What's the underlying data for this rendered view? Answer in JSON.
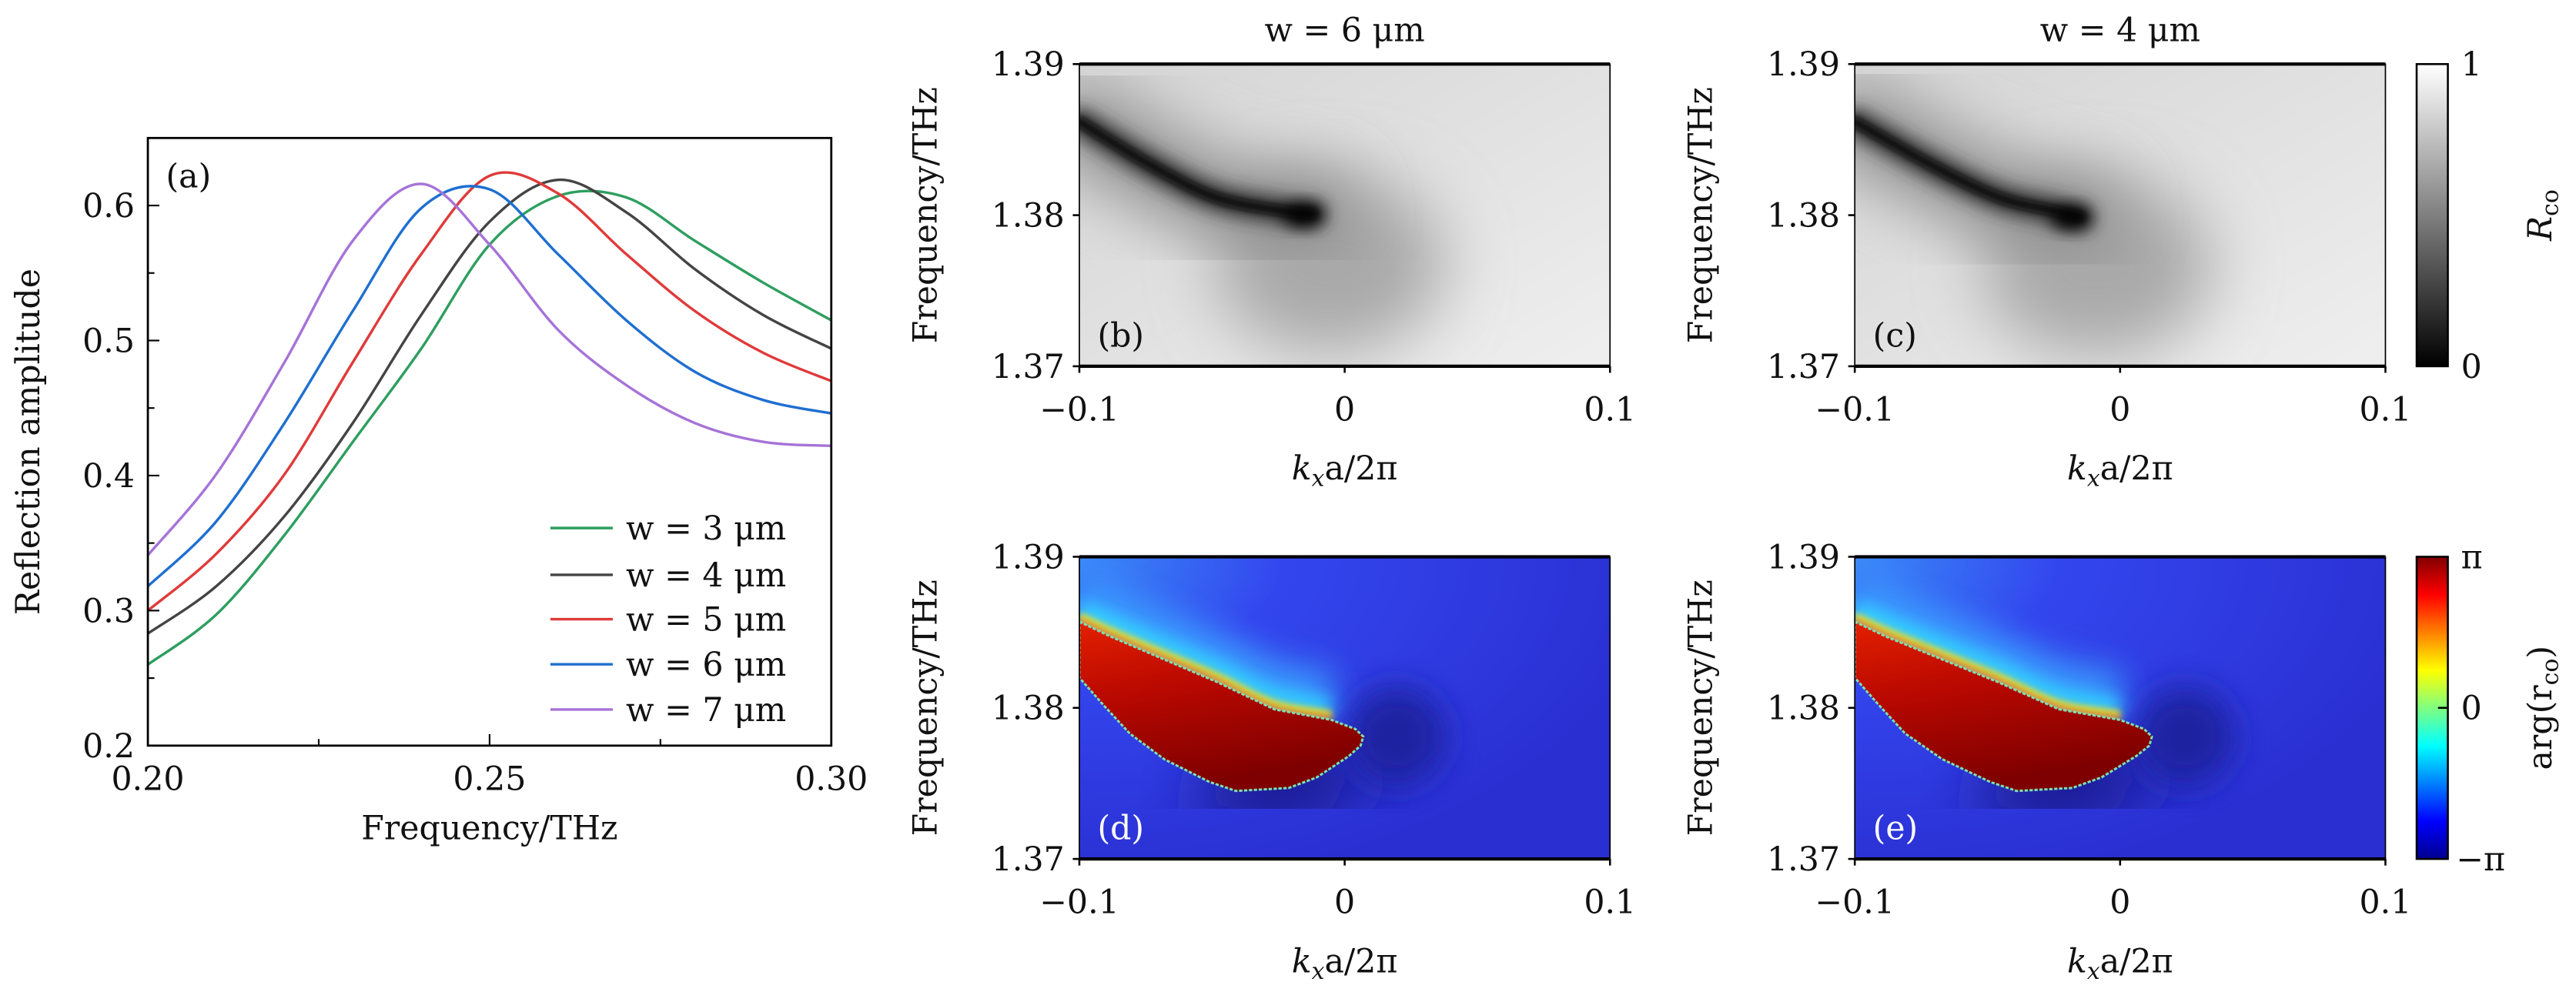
{
  "chart_data": [
    {
      "panel": "(a)",
      "type": "line",
      "xlabel": "Frequency/THz",
      "ylabel": "Reflection amplitude",
      "xlim": [
        0.2,
        0.3
      ],
      "ylim": [
        0.2,
        0.65
      ],
      "xticks": [
        "0.20",
        "0.25",
        "0.30"
      ],
      "yticks": [
        "0.2",
        "0.3",
        "0.4",
        "0.5",
        "0.6"
      ],
      "grid": false,
      "legend_position": "bottom-right",
      "x": [
        0.2,
        0.21,
        0.22,
        0.23,
        0.24,
        0.25,
        0.26,
        0.27,
        0.28,
        0.29,
        0.3
      ],
      "series": [
        {
          "name": "w = 3 μm",
          "color": "#2e9e5f",
          "values": [
            0.26,
            0.297,
            0.356,
            0.425,
            0.494,
            0.571,
            0.607,
            0.606,
            0.574,
            0.543,
            0.515
          ]
        },
        {
          "name": "w = 4 μm",
          "color": "#444444",
          "values": [
            0.283,
            0.318,
            0.37,
            0.439,
            0.519,
            0.588,
            0.619,
            0.595,
            0.553,
            0.519,
            0.494
          ]
        },
        {
          "name": "w = 5 μm",
          "color": "#e03a3a",
          "values": [
            0.3,
            0.342,
            0.401,
            0.484,
            0.564,
            0.622,
            0.609,
            0.564,
            0.522,
            0.491,
            0.47
          ]
        },
        {
          "name": "w = 6 μm",
          "color": "#1f6fd0",
          "values": [
            0.318,
            0.366,
            0.439,
            0.522,
            0.598,
            0.612,
            0.564,
            0.515,
            0.477,
            0.456,
            0.446
          ]
        },
        {
          "name": "w = 7 μm",
          "color": "#a673d8",
          "values": [
            0.341,
            0.401,
            0.484,
            0.574,
            0.616,
            0.571,
            0.508,
            0.467,
            0.439,
            0.425,
            0.422
          ]
        }
      ]
    },
    {
      "panel": "(b)",
      "type": "heatmap",
      "title": "w = 6 μm",
      "xlabel": "kₓa/2π",
      "ylabel": "Frequency/THz",
      "xlim": [
        -0.1,
        0.1
      ],
      "ylim": [
        1.37,
        1.39
      ],
      "xticks": [
        "−0.1",
        "0",
        "0.1"
      ],
      "yticks": [
        "1.37",
        "1.38",
        "1.39"
      ],
      "colormap": "gray",
      "clim": [
        0,
        1
      ],
      "dip_curve": [
        [
          -0.1,
          1.3862
        ],
        [
          -0.074,
          1.3834
        ],
        [
          -0.049,
          1.3812
        ],
        [
          -0.024,
          1.3803
        ],
        [
          -0.012,
          1.3801
        ]
      ]
    },
    {
      "panel": "(c)",
      "type": "heatmap",
      "title": "w = 4 μm",
      "xlabel": "kₓa/2π",
      "ylabel": "Frequency/THz",
      "xlim": [
        -0.1,
        0.1
      ],
      "ylim": [
        1.37,
        1.39
      ],
      "xticks": [
        "−0.1",
        "0",
        "0.1"
      ],
      "yticks": [
        "1.37",
        "1.38",
        "1.39"
      ],
      "colormap": "gray",
      "clim": [
        0,
        1
      ],
      "dip_curve": [
        [
          -0.1,
          1.3862
        ],
        [
          -0.072,
          1.3834
        ],
        [
          -0.046,
          1.3812
        ],
        [
          -0.025,
          1.3803
        ],
        [
          -0.015,
          1.3799
        ]
      ]
    },
    {
      "panel": "(d)",
      "type": "heatmap",
      "xlabel": "kₓa/2π",
      "ylabel": "Frequency/THz",
      "xlim": [
        -0.1,
        0.1
      ],
      "ylim": [
        1.37,
        1.39
      ],
      "xticks": [
        "−0.1",
        "0",
        "0.1"
      ],
      "yticks": [
        "1.37",
        "1.38",
        "1.39"
      ],
      "colormap": "jet",
      "clim": [
        "−π",
        "π"
      ],
      "phase_pi_region": [
        [
          -0.1,
          1.3857
        ],
        [
          -0.088,
          1.3847
        ],
        [
          -0.068,
          1.3832
        ],
        [
          -0.048,
          1.3817
        ],
        [
          -0.0265,
          1.3799
        ],
        [
          -0.005,
          1.3792
        ],
        [
          0.004,
          1.3786
        ],
        [
          0.007,
          1.3781
        ],
        [
          0.006,
          1.3775
        ],
        [
          0.0015,
          1.3768
        ],
        [
          -0.0105,
          1.3754
        ],
        [
          -0.021,
          1.3747
        ],
        [
          -0.041,
          1.3745
        ],
        [
          -0.051,
          1.3751
        ],
        [
          -0.068,
          1.3766
        ],
        [
          -0.081,
          1.3783
        ],
        [
          -0.091,
          1.3802
        ],
        [
          -0.1,
          1.382
        ]
      ]
    },
    {
      "panel": "(e)",
      "type": "heatmap",
      "xlabel": "kₓa/2π",
      "ylabel": "Frequency/THz",
      "xlim": [
        -0.1,
        0.1
      ],
      "ylim": [
        1.37,
        1.39
      ],
      "xticks": [
        "−0.1",
        "0",
        "0.1"
      ],
      "yticks": [
        "1.37",
        "1.38",
        "1.39"
      ],
      "colormap": "jet",
      "clim": [
        "−π",
        "π"
      ],
      "phase_pi_region": [
        [
          -0.1,
          1.3857
        ],
        [
          -0.088,
          1.3847
        ],
        [
          -0.067,
          1.3832
        ],
        [
          -0.046,
          1.3817
        ],
        [
          -0.023,
          1.3799
        ],
        [
          0.0,
          1.3792
        ],
        [
          0.009,
          1.3786
        ],
        [
          0.012,
          1.3781
        ],
        [
          0.011,
          1.3775
        ],
        [
          0.006,
          1.3768
        ],
        [
          -0.007,
          1.3754
        ],
        [
          -0.018,
          1.3747
        ],
        [
          -0.039,
          1.3745
        ],
        [
          -0.049,
          1.3751
        ],
        [
          -0.067,
          1.3766
        ],
        [
          -0.081,
          1.3783
        ],
        [
          -0.091,
          1.3802
        ],
        [
          -0.1,
          1.382
        ]
      ]
    }
  ],
  "colorbars": {
    "amplitude": {
      "ticks": [
        "0",
        "1"
      ],
      "label_main": "R",
      "label_sub": "co",
      "colormap": "gray"
    },
    "phase": {
      "ticks": [
        "−π",
        "0",
        "π"
      ],
      "label_main": "arg(r",
      "label_sub": "co",
      "label_end": ")",
      "colormap": "jet"
    }
  },
  "xlabel_parts": {
    "k": "k",
    "sub": "x",
    "rest": "a/2π"
  }
}
